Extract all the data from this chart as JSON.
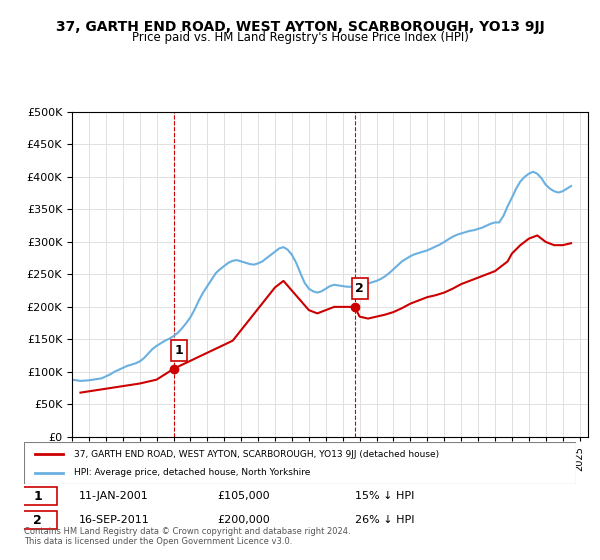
{
  "title": "37, GARTH END ROAD, WEST AYTON, SCARBOROUGH, YO13 9JJ",
  "subtitle": "Price paid vs. HM Land Registry's House Price Index (HPI)",
  "ylabel": "",
  "ylim": [
    0,
    500000
  ],
  "yticks": [
    0,
    50000,
    100000,
    150000,
    200000,
    250000,
    300000,
    350000,
    400000,
    450000,
    500000
  ],
  "xlim_start": 1995.0,
  "xlim_end": 2025.5,
  "hpi_color": "#6ab0e0",
  "price_color": "#cc0000",
  "marker_color": "#cc0000",
  "vline_color": "#cc0000",
  "background_color": "#ffffff",
  "grid_color": "#e0e0e0",
  "legend_label_price": "37, GARTH END ROAD, WEST AYTON, SCARBOROUGH, YO13 9JJ (detached house)",
  "legend_label_hpi": "HPI: Average price, detached house, North Yorkshire",
  "annotation1": {
    "num": "1",
    "date": "11-JAN-2001",
    "price": "£105,000",
    "pct": "15% ↓ HPI",
    "x": 2001.03
  },
  "annotation2": {
    "num": "2",
    "date": "16-SEP-2011",
    "price": "£200,000",
    "pct": "26% ↓ HPI",
    "x": 2011.71
  },
  "footer": "Contains HM Land Registry data © Crown copyright and database right 2024.\nThis data is licensed under the Open Government Licence v3.0.",
  "hpi_data_x": [
    1995.0,
    1995.25,
    1995.5,
    1995.75,
    1996.0,
    1996.25,
    1996.5,
    1996.75,
    1997.0,
    1997.25,
    1997.5,
    1997.75,
    1998.0,
    1998.25,
    1998.5,
    1998.75,
    1999.0,
    1999.25,
    1999.5,
    1999.75,
    2000.0,
    2000.25,
    2000.5,
    2000.75,
    2001.0,
    2001.25,
    2001.5,
    2001.75,
    2002.0,
    2002.25,
    2002.5,
    2002.75,
    2003.0,
    2003.25,
    2003.5,
    2003.75,
    2004.0,
    2004.25,
    2004.5,
    2004.75,
    2005.0,
    2005.25,
    2005.5,
    2005.75,
    2006.0,
    2006.25,
    2006.5,
    2006.75,
    2007.0,
    2007.25,
    2007.5,
    2007.75,
    2008.0,
    2008.25,
    2008.5,
    2008.75,
    2009.0,
    2009.25,
    2009.5,
    2009.75,
    2010.0,
    2010.25,
    2010.5,
    2010.75,
    2011.0,
    2011.25,
    2011.5,
    2011.75,
    2012.0,
    2012.25,
    2012.5,
    2012.75,
    2013.0,
    2013.25,
    2013.5,
    2013.75,
    2014.0,
    2014.25,
    2014.5,
    2014.75,
    2015.0,
    2015.25,
    2015.5,
    2015.75,
    2016.0,
    2016.25,
    2016.5,
    2016.75,
    2017.0,
    2017.25,
    2017.5,
    2017.75,
    2018.0,
    2018.25,
    2018.5,
    2018.75,
    2019.0,
    2019.25,
    2019.5,
    2019.75,
    2020.0,
    2020.25,
    2020.5,
    2020.75,
    2021.0,
    2021.25,
    2021.5,
    2021.75,
    2022.0,
    2022.25,
    2022.5,
    2022.75,
    2023.0,
    2023.25,
    2023.5,
    2023.75,
    2024.0,
    2024.25,
    2024.5
  ],
  "hpi_data_y": [
    88000,
    87000,
    86000,
    86500,
    87000,
    88000,
    89000,
    90000,
    93000,
    96000,
    100000,
    103000,
    106000,
    109000,
    111000,
    113000,
    116000,
    121000,
    128000,
    135000,
    140000,
    144000,
    148000,
    151000,
    155000,
    160000,
    167000,
    175000,
    184000,
    196000,
    210000,
    222000,
    232000,
    242000,
    252000,
    258000,
    263000,
    268000,
    271000,
    272000,
    270000,
    268000,
    266000,
    265000,
    267000,
    270000,
    275000,
    280000,
    285000,
    290000,
    292000,
    288000,
    280000,
    268000,
    252000,
    237000,
    228000,
    224000,
    222000,
    224000,
    228000,
    232000,
    234000,
    233000,
    232000,
    231000,
    231000,
    232000,
    232000,
    234000,
    236000,
    238000,
    240000,
    243000,
    247000,
    252000,
    258000,
    264000,
    270000,
    274000,
    278000,
    281000,
    283000,
    285000,
    287000,
    290000,
    293000,
    296000,
    300000,
    304000,
    308000,
    311000,
    313000,
    315000,
    317000,
    318000,
    320000,
    322000,
    325000,
    328000,
    330000,
    330000,
    340000,
    355000,
    368000,
    382000,
    393000,
    400000,
    405000,
    408000,
    405000,
    398000,
    388000,
    382000,
    378000,
    376000,
    378000,
    382000,
    386000
  ],
  "price_data_x": [
    1995.5,
    1996.0,
    1996.5,
    1997.0,
    1997.5,
    1998.0,
    1998.5,
    1999.0,
    1999.5,
    2000.0,
    2001.03,
    2004.5,
    2007.0,
    2007.5,
    2008.5,
    2009.0,
    2009.5,
    2010.0,
    2010.5,
    2011.71,
    2012.0,
    2012.5,
    2013.0,
    2013.5,
    2014.0,
    2014.5,
    2015.0,
    2015.5,
    2016.0,
    2016.5,
    2017.0,
    2017.5,
    2018.0,
    2018.5,
    2019.0,
    2019.5,
    2020.0,
    2020.75,
    2021.0,
    2021.5,
    2022.0,
    2022.5,
    2023.0,
    2023.5,
    2024.0,
    2024.5
  ],
  "price_data_y": [
    68000,
    70000,
    72000,
    74000,
    76000,
    78000,
    80000,
    82000,
    85000,
    88000,
    105000,
    148000,
    230000,
    240000,
    210000,
    195000,
    190000,
    195000,
    200000,
    200000,
    185000,
    182000,
    185000,
    188000,
    192000,
    198000,
    205000,
    210000,
    215000,
    218000,
    222000,
    228000,
    235000,
    240000,
    245000,
    250000,
    255000,
    270000,
    282000,
    295000,
    305000,
    310000,
    300000,
    295000,
    295000,
    298000
  ]
}
